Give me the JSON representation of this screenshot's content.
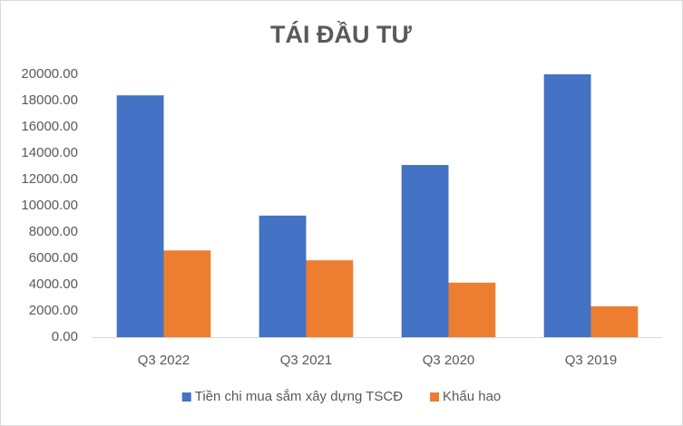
{
  "chart_data": {
    "type": "bar",
    "title": "TÁI ĐẦU TƯ",
    "categories": [
      "Q3 2022",
      "Q3 2021",
      "Q3 2020",
      "Q3 2019"
    ],
    "series": [
      {
        "name": "Tiền chi mua sắm xây dựng TSCĐ",
        "color": "#4472c4",
        "values": [
          18400,
          9250,
          13100,
          20000
        ]
      },
      {
        "name": "Khấu hao",
        "color": "#ed7d31",
        "values": [
          6600,
          5850,
          4150,
          2350
        ]
      }
    ],
    "ylim": [
      0,
      20000
    ],
    "yticks": [
      {
        "value": 0,
        "label": "0.00"
      },
      {
        "value": 2000,
        "label": "2000.00"
      },
      {
        "value": 4000,
        "label": "4000.00"
      },
      {
        "value": 6000,
        "label": "6000.00"
      },
      {
        "value": 8000,
        "label": "8000.00"
      },
      {
        "value": 10000,
        "label": "10000.00"
      },
      {
        "value": 12000,
        "label": "12000.00"
      },
      {
        "value": 14000,
        "label": "14000.00"
      },
      {
        "value": 16000,
        "label": "16000.00"
      },
      {
        "value": 18000,
        "label": "18000.00"
      },
      {
        "value": 20000,
        "label": "20000.00"
      }
    ],
    "grid": false,
    "legend": "bottom"
  }
}
